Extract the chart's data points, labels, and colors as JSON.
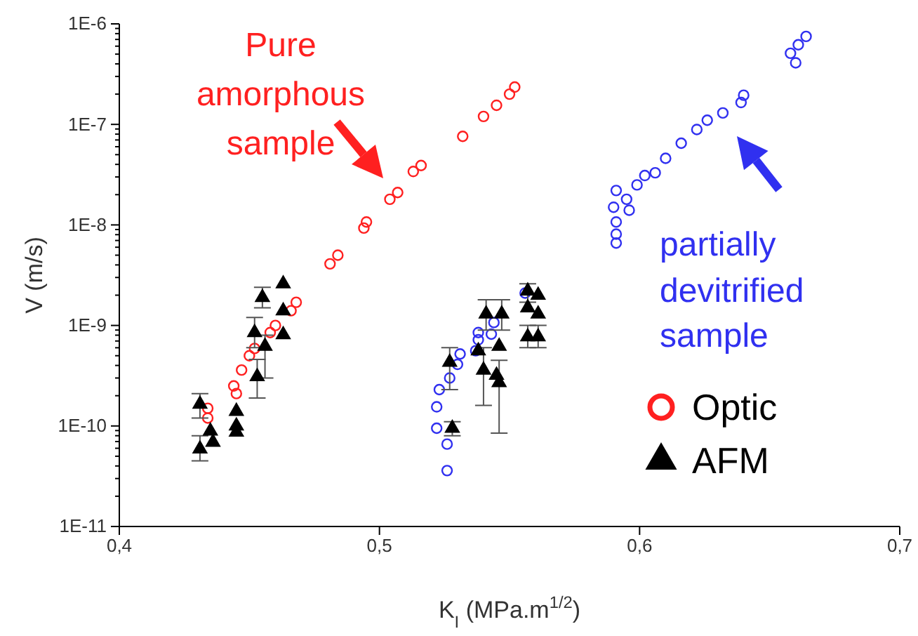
{
  "chart_data": {
    "type": "scatter",
    "xlabel": "K$_{I}$ (MPa.m$^{1/2}$)",
    "ylabel": "V (m/s)",
    "log": "y",
    "legend": "bottom right",
    "xlim": [
      0.4,
      0.7
    ],
    "xticks": [
      {
        "value": 0.4,
        "label": "0,4"
      },
      {
        "value": 0.5,
        "label": "0,5"
      },
      {
        "value": 0.6,
        "label": "0,6"
      },
      {
        "value": 0.7,
        "label": "0,7"
      }
    ],
    "ylim": [
      1e-11,
      1e-06
    ],
    "yticks": [
      {
        "value": 1e-11,
        "label": "1E-11"
      },
      {
        "value": 2e-11,
        "label": null
      },
      {
        "value": 3e-11,
        "label": null
      },
      {
        "value": 4e-11,
        "label": null
      },
      {
        "value": 5e-11,
        "label": null
      },
      {
        "value": 6e-11,
        "label": null
      },
      {
        "value": 7e-11,
        "label": null
      },
      {
        "value": 8e-11,
        "label": null
      },
      {
        "value": 9e-11,
        "label": null
      },
      {
        "value": 1e-10,
        "label": "1E-10"
      },
      {
        "value": 2e-10,
        "label": null
      },
      {
        "value": 3e-10,
        "label": null
      },
      {
        "value": 4e-10,
        "label": null
      },
      {
        "value": 5e-10,
        "label": null
      },
      {
        "value": 6e-10,
        "label": null
      },
      {
        "value": 7e-10,
        "label": null
      },
      {
        "value": 8e-10,
        "label": null
      },
      {
        "value": 9e-10,
        "label": null
      },
      {
        "value": 1e-09,
        "label": "1E-9"
      },
      {
        "value": 2e-09,
        "label": null
      },
      {
        "value": 3e-09,
        "label": null
      },
      {
        "value": 4e-09,
        "label": null
      },
      {
        "value": 5e-09,
        "label": null
      },
      {
        "value": 6e-09,
        "label": null
      },
      {
        "value": 7e-09,
        "label": null
      },
      {
        "value": 8e-09,
        "label": null
      },
      {
        "value": 9e-09,
        "label": null
      },
      {
        "value": 1e-08,
        "label": "1E-8"
      },
      {
        "value": 2e-08,
        "label": null
      },
      {
        "value": 3e-08,
        "label": null
      },
      {
        "value": 4e-08,
        "label": null
      },
      {
        "value": 5e-08,
        "label": null
      },
      {
        "value": 6e-08,
        "label": null
      },
      {
        "value": 7e-08,
        "label": null
      },
      {
        "value": 8e-08,
        "label": null
      },
      {
        "value": 9e-08,
        "label": null
      },
      {
        "value": 1e-07,
        "label": "1E-7"
      },
      {
        "value": 2e-07,
        "label": null
      },
      {
        "value": 3e-07,
        "label": null
      },
      {
        "value": 4e-07,
        "label": null
      },
      {
        "value": 5e-07,
        "label": null
      },
      {
        "value": 6e-07,
        "label": null
      },
      {
        "value": 7e-07,
        "label": null
      },
      {
        "value": 8e-07,
        "label": null
      },
      {
        "value": 9e-07,
        "label": null
      },
      {
        "value": 1e-06,
        "label": "1E-6"
      }
    ],
    "annotations": [
      "Pure amorphous sample",
      "partially devitrified sample"
    ],
    "series": [
      {
        "name": "Optic",
        "color": "#ff2020",
        "marker": "circle",
        "x": [
          0.434,
          0.434,
          0.444,
          0.445,
          0.447,
          0.45,
          0.452,
          0.458,
          0.46,
          0.466,
          0.468,
          0.481,
          0.484,
          0.494,
          0.495,
          0.504,
          0.507,
          0.513,
          0.516,
          0.532,
          0.54,
          0.545,
          0.55,
          0.552
        ],
        "values": [
          1.2e-10,
          1.5e-10,
          2.5e-10,
          2.1e-10,
          3.6e-10,
          5e-10,
          5.9e-10,
          8.5e-10,
          1e-09,
          1.4e-09,
          1.7e-09,
          4.1e-09,
          5e-09,
          9.3e-09,
          1.07e-08,
          1.8e-08,
          2.1e-08,
          3.4e-08,
          3.9e-08,
          7.6e-08,
          1.2e-07,
          1.55e-07,
          2e-07,
          2.35e-07
        ]
      },
      {
        "color": "#3030f0",
        "marker": "circle",
        "x": [
          0.526,
          0.526,
          0.522,
          0.522,
          0.523,
          0.527,
          0.53,
          0.531,
          0.537,
          0.538,
          0.538,
          0.543,
          0.544,
          0.556,
          0.591,
          0.591,
          0.591,
          0.59,
          0.591,
          0.596,
          0.595,
          0.599,
          0.602,
          0.606,
          0.61,
          0.616,
          0.622,
          0.626,
          0.632,
          0.639,
          0.64,
          0.658,
          0.66,
          0.661,
          0.664
        ],
        "values": [
          3.6e-11,
          6.6e-11,
          9.5e-11,
          1.55e-10,
          2.3e-10,
          3e-10,
          4.1e-10,
          5.2e-10,
          5.6e-10,
          7.2e-10,
          8.5e-10,
          8.2e-10,
          1.07e-09,
          2.1e-09,
          6.6e-09,
          8.1e-09,
          1.07e-08,
          1.5e-08,
          2.2e-08,
          1.4e-08,
          1.8e-08,
          2.5e-08,
          3.1e-08,
          3.3e-08,
          4.6e-08,
          6.5e-08,
          8.9e-08,
          1.1e-07,
          1.3e-07,
          1.65e-07,
          1.95e-07,
          5.1e-07,
          4.1e-07,
          6.2e-07,
          7.5e-07
        ]
      },
      {
        "name": "AFM",
        "color": "#000000",
        "marker": "triangle",
        "x": [
          0.431,
          0.436,
          0.435,
          0.431,
          0.445,
          0.445,
          0.445,
          0.453,
          0.452,
          0.456,
          0.455,
          0.463,
          0.463,
          0.463,
          0.528,
          0.527,
          0.541,
          0.54,
          0.547,
          0.546,
          0.546,
          0.557,
          0.557,
          0.557,
          0.561,
          0.561,
          0.561,
          0.538,
          0.545
        ],
        "values": [
          5.9e-11,
          6.9e-11,
          8.9e-11,
          1.65e-10,
          1.4e-10,
          1e-10,
          8.7e-11,
          3.1e-10,
          8.5e-10,
          6.2e-10,
          1.9e-09,
          2.6e-09,
          1.4e-09,
          8.1e-10,
          9.5e-11,
          4.3e-10,
          1.3e-09,
          3.6e-10,
          1.3e-09,
          6.2e-10,
          2.7e-10,
          2.2e-09,
          1.5e-09,
          7.7e-10,
          2e-09,
          1.3e-09,
          7.7e-10,
          5.6e-10,
          3.2e-10
        ],
        "errors": [
          [
            4.5e-11,
            8e-11
          ],
          null,
          null,
          [
            1.2e-10,
            2.1e-10
          ],
          null,
          null,
          null,
          [
            1.9e-10,
            4.6e-10
          ],
          [
            6e-10,
            1.2e-09
          ],
          [
            3e-10,
            8e-10
          ],
          [
            1.5e-09,
            2.4e-09
          ],
          null,
          null,
          null,
          [
            8e-11,
            1.1e-10
          ],
          [
            2.3e-10,
            6e-10
          ],
          [
            9e-10,
            1.8e-09
          ],
          [
            1.6e-10,
            6e-10
          ],
          [
            9e-10,
            1.8e-09
          ],
          null,
          [
            8.5e-11,
            4.5e-10
          ],
          [
            1.7e-09,
            2.6e-09
          ],
          null,
          [
            6e-10,
            1e-09
          ],
          null,
          null,
          [
            6e-10,
            1e-09
          ],
          null,
          null
        ]
      }
    ]
  }
}
